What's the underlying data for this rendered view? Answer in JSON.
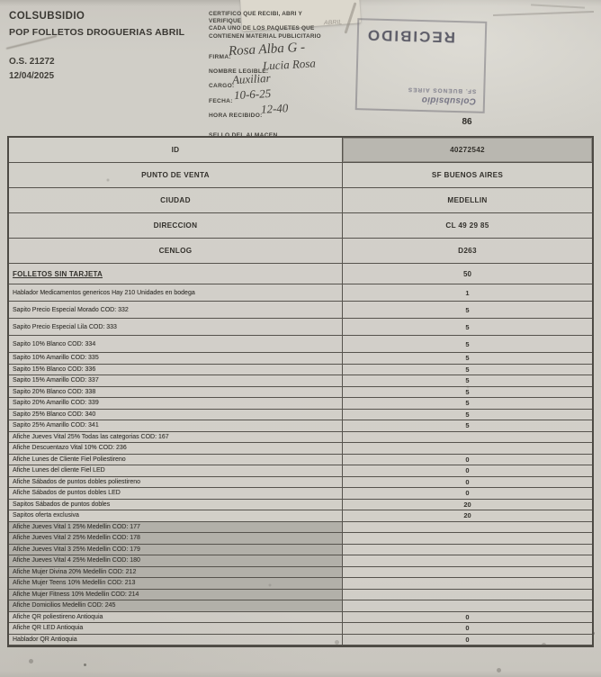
{
  "header": {
    "company": "COLSUBSIDIO",
    "campaign": "POP FOLLETOS DROGUERIAS ABRIL",
    "order_number": "O.S. 21272",
    "order_date": "12/04/2025",
    "certificate_lines": [
      "CERTIFICO QUE RECIBI, ABRI Y",
      "VERIFIQUE",
      "CADA UNO DE LOS PAQUETES QUE",
      "CONTIENEN MATERIAL PUBLICITARIO"
    ],
    "faint_note": "ABRIL",
    "fields": [
      {
        "label": "FIRMA:",
        "value": "Rosa Alba G -"
      },
      {
        "label": "NOMBRE LEGIBLE:",
        "value": "Lucia Rosa"
      },
      {
        "label": "CARGO:",
        "value": "Auxiliar"
      },
      {
        "label": "FECHA:",
        "value": "10-6-25"
      },
      {
        "label": "HORA RECIBIDO:",
        "value": "12-40"
      },
      {
        "label": "SELLO DEL ALMACEN",
        "value": ""
      }
    ]
  },
  "stamp": {
    "brand": "Colsubsidio",
    "location": "SF. BUENOS AIRES",
    "title": "RECIBIDO"
  },
  "column_header": "86",
  "colors": {
    "paper": "#cfccc5",
    "table_border": "#56534d",
    "shaded_cell": "#b2b0a9",
    "stamp_ink": "#42425e",
    "text": "#35332e"
  },
  "table": {
    "info_rows": [
      {
        "label": "ID",
        "value": "40272542",
        "value_shaded": true
      },
      {
        "label": "PUNTO DE VENTA",
        "value": "SF BUENOS AIRES",
        "value_shaded": false
      },
      {
        "label": "CIUDAD",
        "value": "MEDELLIN",
        "value_shaded": false
      },
      {
        "label": "DIRECCION",
        "value": "CL 49 29 85",
        "value_shaded": false
      },
      {
        "label": "CENLOG",
        "value": "D263",
        "value_shaded": false
      }
    ],
    "section_row": {
      "label": "FOLLETOS SIN TARJETA",
      "value": "50"
    },
    "item_rows": [
      {
        "label": "Hablador Medicamentos genericos Hay 210 Unidades en bodega",
        "value": "1",
        "shaded": false
      },
      {
        "label": "Sapito Precio Especial Morado COD: 332",
        "value": "5",
        "shaded": false
      },
      {
        "label": "Sapito Precio Especial Lila COD: 333",
        "value": "5",
        "shaded": false
      },
      {
        "label": "Sapito 10% Blanco COD: 334",
        "value": "5",
        "shaded": false
      },
      {
        "label": "Sapito 10% Amarillo COD: 335",
        "value": "5",
        "shaded": false
      },
      {
        "label": "Sapito 15% Blanco COD: 336",
        "value": "5",
        "shaded": false
      },
      {
        "label": "Sapito 15% Amarillo COD: 337",
        "value": "5",
        "shaded": false
      },
      {
        "label": "Sapito 20% Blanco COD: 338",
        "value": "5",
        "shaded": false
      },
      {
        "label": "Sapito 20% Amarillo COD: 339",
        "value": "5",
        "shaded": false
      },
      {
        "label": "Sapito 25% Blanco COD: 340",
        "value": "5",
        "shaded": false
      },
      {
        "label": "Sapito 25% Amarillo COD: 341",
        "value": "5",
        "shaded": false
      },
      {
        "label": "Afiche Jueves Vital 25% Todas las categorias COD: 167",
        "value": "",
        "shaded": false
      },
      {
        "label": "Afiche Descuentazo Vital 10% COD: 236",
        "value": "",
        "shaded": false
      },
      {
        "label": "Afiche Lunes de Cliente Fiel Poliestireno",
        "value": "0",
        "shaded": false
      },
      {
        "label": "Afiche Lunes del cliente Fiel LED",
        "value": "0",
        "shaded": false
      },
      {
        "label": "Afiche Sábados de puntos dobles poliestireno",
        "value": "0",
        "shaded": false
      },
      {
        "label": "Afiche Sábados de puntos dobles LED",
        "value": "0",
        "shaded": false
      },
      {
        "label": "Sapitos Sábados de puntos dobles",
        "value": "20",
        "shaded": false
      },
      {
        "label": "Sapitos oferta exclusiva",
        "value": "20",
        "shaded": false
      },
      {
        "label": "Afiche Jueves Vital 1 25% Medellin COD: 177",
        "value": "",
        "shaded": true
      },
      {
        "label": "Afiche Jueves Vital 2 25% Medellin COD: 178",
        "value": "",
        "shaded": true
      },
      {
        "label": "Afiche Jueves Vital 3 25% Medellin COD: 179",
        "value": "",
        "shaded": true
      },
      {
        "label": "Afiche Jueves Vital 4 25% Medellin COD: 180",
        "value": "",
        "shaded": true
      },
      {
        "label": "Afiche Mujer Divina 20% Medellin COD: 212",
        "value": "",
        "shaded": true
      },
      {
        "label": "Afiche Mujer Teens 10% Medellin COD: 213",
        "value": "",
        "shaded": true
      },
      {
        "label": "Afiche Mujer Fitness 10% Medellin COD: 214",
        "value": "",
        "shaded": true
      },
      {
        "label": "Afiche Domicilios Medellin COD: 245",
        "value": "",
        "shaded": true
      },
      {
        "label": "Afiche QR poliestireno Antioquia",
        "value": "0",
        "shaded": false
      },
      {
        "label": "Afiche QR LED Antioquia",
        "value": "0",
        "shaded": false
      },
      {
        "label": "Hablador QR Antioquia",
        "value": "0",
        "shaded": false
      }
    ]
  }
}
